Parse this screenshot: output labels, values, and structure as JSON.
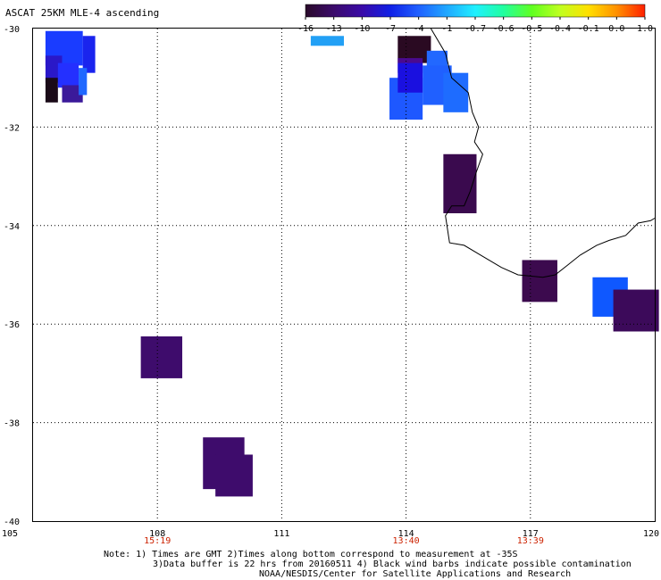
{
  "title": "ASCAT 25KM MLE-4 ascending",
  "colorbar": {
    "labels": [
      "-16",
      "-13",
      "-10",
      "-7",
      "-4",
      "-1",
      "-0.7",
      "-0.6",
      "-0.5",
      "-0.4",
      "-0.1",
      "0.0",
      "1.0"
    ],
    "colors": [
      "#2a0a2a",
      "#3b0a6a",
      "#3a0aa8",
      "#1020e6",
      "#2060ff",
      "#20a8ff",
      "#20f0ff",
      "#20ffa0",
      "#60ff20",
      "#c0ff20",
      "#ffe000",
      "#ff9000",
      "#ff2000"
    ]
  },
  "axes": {
    "lon_ticks": [
      "105",
      "108",
      "111",
      "114",
      "117",
      "120"
    ],
    "lat_ticks": [
      "-30",
      "-32",
      "-34",
      "-36",
      "-38",
      "-40"
    ],
    "lon_range": [
      105,
      120
    ],
    "lat_range": [
      -30,
      -40
    ]
  },
  "time_labels": [
    {
      "lon": 108,
      "text": "15:19"
    },
    {
      "lon": 114,
      "text": "13:40"
    },
    {
      "lon": 117,
      "text": "13:39"
    }
  ],
  "time_label_color": "#cc2200",
  "notes": [
    "Note: 1) Times are GMT 2)Times along bottom correspond to measurement at -35S",
    "3)Data buffer is 22 hrs from 20160511 4) Black wind barbs indicate possible contamination",
    "NOAA/NESDIS/Center for Satellite Applications and Research"
  ],
  "cells": [
    {
      "lon": 105.3,
      "lat": -30.05,
      "w": 0.9,
      "h": 0.7,
      "color": "#1a3cff"
    },
    {
      "lon": 106.2,
      "lat": -30.15,
      "w": 0.3,
      "h": 0.75,
      "color": "#1a24ee"
    },
    {
      "lon": 105.3,
      "lat": -30.55,
      "w": 0.4,
      "h": 0.55,
      "color": "#2a18c8"
    },
    {
      "lon": 105.3,
      "lat": -31.0,
      "w": 0.3,
      "h": 0.5,
      "color": "#1a0a18"
    },
    {
      "lon": 105.6,
      "lat": -30.7,
      "w": 0.5,
      "h": 0.5,
      "color": "#2430ff"
    },
    {
      "lon": 105.7,
      "lat": -31.15,
      "w": 0.5,
      "h": 0.35,
      "color": "#3b1a9a"
    },
    {
      "lon": 106.1,
      "lat": -30.8,
      "w": 0.2,
      "h": 0.55,
      "color": "#2068ff"
    },
    {
      "lon": 111.7,
      "lat": -30.15,
      "w": 0.8,
      "h": 0.2,
      "color": "#22a0f5"
    },
    {
      "lon": 113.8,
      "lat": -30.15,
      "w": 0.8,
      "h": 0.55,
      "color": "#2a0a22"
    },
    {
      "lon": 113.8,
      "lat": -30.6,
      "w": 0.6,
      "h": 0.3,
      "color": "#4a0a90"
    },
    {
      "lon": 114.5,
      "lat": -30.45,
      "w": 0.5,
      "h": 0.35,
      "color": "#2268ff"
    },
    {
      "lon": 113.6,
      "lat": -31.0,
      "w": 0.8,
      "h": 0.85,
      "color": "#1e58ff"
    },
    {
      "lon": 113.8,
      "lat": -30.7,
      "w": 0.6,
      "h": 0.6,
      "color": "#1a10e0"
    },
    {
      "lon": 114.4,
      "lat": -30.75,
      "w": 0.7,
      "h": 0.8,
      "color": "#2060ff"
    },
    {
      "lon": 114.9,
      "lat": -30.9,
      "w": 0.6,
      "h": 0.8,
      "color": "#1e6cff"
    },
    {
      "lon": 114.9,
      "lat": -32.55,
      "w": 0.8,
      "h": 1.2,
      "color": "#3a0a4e"
    },
    {
      "lon": 116.8,
      "lat": -34.7,
      "w": 0.85,
      "h": 0.85,
      "color": "#3c0a4e"
    },
    {
      "lon": 118.5,
      "lat": -35.05,
      "w": 0.85,
      "h": 0.8,
      "color": "#0f58ff"
    },
    {
      "lon": 119.0,
      "lat": -35.3,
      "w": 1.1,
      "h": 0.85,
      "color": "#3c0a5a"
    },
    {
      "lon": 107.6,
      "lat": -36.25,
      "w": 1.0,
      "h": 0.85,
      "color": "#3e0c6c"
    },
    {
      "lon": 109.1,
      "lat": -38.3,
      "w": 1.0,
      "h": 1.05,
      "color": "#3e0c6c"
    },
    {
      "lon": 109.4,
      "lat": -38.65,
      "w": 0.9,
      "h": 0.85,
      "color": "#3e0c6c"
    }
  ],
  "coastline": [
    [
      114.6,
      -30.0
    ],
    [
      114.95,
      -30.5
    ],
    [
      115.1,
      -31.0
    ],
    [
      115.5,
      -31.3
    ],
    [
      115.6,
      -31.7
    ],
    [
      115.75,
      -32.0
    ],
    [
      115.65,
      -32.3
    ],
    [
      115.85,
      -32.55
    ],
    [
      115.7,
      -32.9
    ],
    [
      115.55,
      -33.3
    ],
    [
      115.4,
      -33.6
    ],
    [
      115.1,
      -33.6
    ],
    [
      114.95,
      -33.8
    ],
    [
      115.05,
      -34.35
    ],
    [
      115.4,
      -34.4
    ],
    [
      115.8,
      -34.6
    ],
    [
      116.3,
      -34.85
    ],
    [
      116.7,
      -35.0
    ],
    [
      117.3,
      -35.05
    ],
    [
      117.6,
      -35.0
    ],
    [
      117.9,
      -34.8
    ],
    [
      118.2,
      -34.6
    ],
    [
      118.6,
      -34.4
    ],
    [
      118.9,
      -34.3
    ],
    [
      119.3,
      -34.2
    ],
    [
      119.6,
      -33.95
    ],
    [
      119.9,
      -33.9
    ],
    [
      120.0,
      -33.85
    ]
  ]
}
